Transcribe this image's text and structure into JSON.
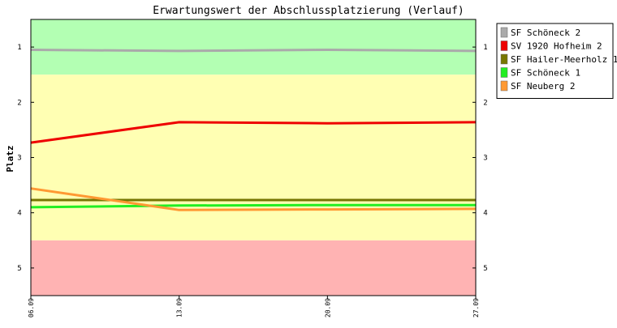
{
  "chart_data": {
    "type": "line",
    "title": "Erwartungswert der Abschlussplatzierung (Verlauf)",
    "ylabel": "Platz",
    "xlabel": "",
    "ylim": [
      0.5,
      5.5
    ],
    "y_inverted": true,
    "yticks": [
      "1",
      "2",
      "3",
      "4",
      "5"
    ],
    "x": [
      "06.09",
      "13.09",
      "20.09",
      "27.09"
    ],
    "bands": [
      {
        "from": 0.5,
        "to": 1.5,
        "color": "#b3ffb3"
      },
      {
        "from": 1.5,
        "to": 4.5,
        "color": "#ffffb3"
      },
      {
        "from": 4.5,
        "to": 5.5,
        "color": "#ffb3b3"
      }
    ],
    "legend_position": "right",
    "grid": false,
    "series": [
      {
        "name": "SF Schöneck 2",
        "color": "#aaaaaa",
        "values": [
          1.05,
          1.07,
          1.05,
          1.07
        ]
      },
      {
        "name": "SV 1920 Hofheim 2",
        "color": "#ee0000",
        "values": [
          2.73,
          2.36,
          2.38,
          2.36
        ]
      },
      {
        "name": "SF Hailer-Meerholz 1",
        "color": "#777700",
        "values": [
          3.77,
          3.77,
          3.77,
          3.77
        ]
      },
      {
        "name": "SF Schöneck 1",
        "color": "#22ee22",
        "values": [
          3.9,
          3.87,
          3.86,
          3.86
        ]
      },
      {
        "name": "SF Neuberg 2",
        "color": "#ff9933",
        "values": [
          3.56,
          3.95,
          3.94,
          3.93
        ]
      }
    ]
  }
}
